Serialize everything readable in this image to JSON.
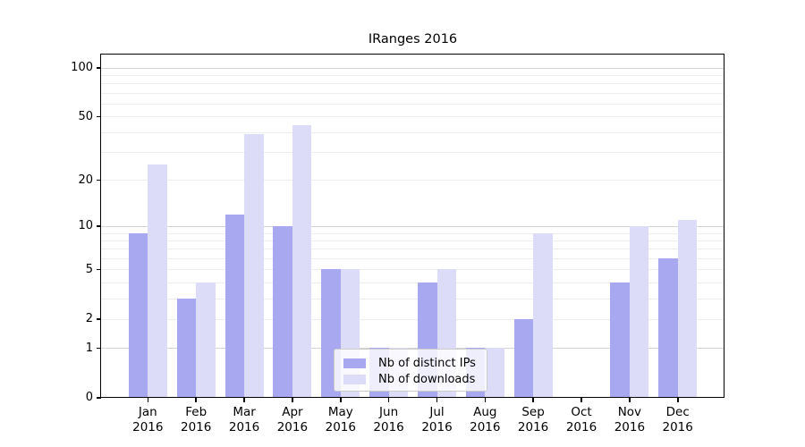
{
  "chart_data": {
    "type": "bar",
    "title": "IRanges 2016",
    "categories": [
      {
        "month": "Jan",
        "year": "2016"
      },
      {
        "month": "Feb",
        "year": "2016"
      },
      {
        "month": "Mar",
        "year": "2016"
      },
      {
        "month": "Apr",
        "year": "2016"
      },
      {
        "month": "May",
        "year": "2016"
      },
      {
        "month": "Jun",
        "year": "2016"
      },
      {
        "month": "Jul",
        "year": "2016"
      },
      {
        "month": "Aug",
        "year": "2016"
      },
      {
        "month": "Sep",
        "year": "2016"
      },
      {
        "month": "Oct",
        "year": "2016"
      },
      {
        "month": "Nov",
        "year": "2016"
      },
      {
        "month": "Dec",
        "year": "2016"
      }
    ],
    "series": [
      {
        "name": "Nb of distinct IPs",
        "color": "#a8a8f0",
        "values": [
          9,
          3,
          12,
          10,
          5,
          1,
          4,
          1,
          2,
          0,
          4,
          6
        ]
      },
      {
        "name": "Nb of downloads",
        "color": "#dcdcf8",
        "values": [
          25,
          4,
          39,
          44,
          5,
          1,
          5,
          1,
          9,
          0,
          10,
          11
        ]
      }
    ],
    "y_axis": {
      "scale": "log1p",
      "ticks": [
        0,
        1,
        2,
        5,
        10,
        20,
        50,
        100
      ],
      "max": 121,
      "major_gridlines": [
        1,
        10,
        100
      ],
      "minor_gridlines": [
        2,
        3,
        4,
        5,
        6,
        7,
        8,
        9,
        20,
        30,
        40,
        50,
        60,
        70,
        80,
        90
      ]
    },
    "legend": {
      "position": "inside-bottom-center"
    },
    "colors": {
      "major_grid": "#d4d4d4",
      "minor_grid": "#eeeeee",
      "axis": "#000000"
    }
  }
}
